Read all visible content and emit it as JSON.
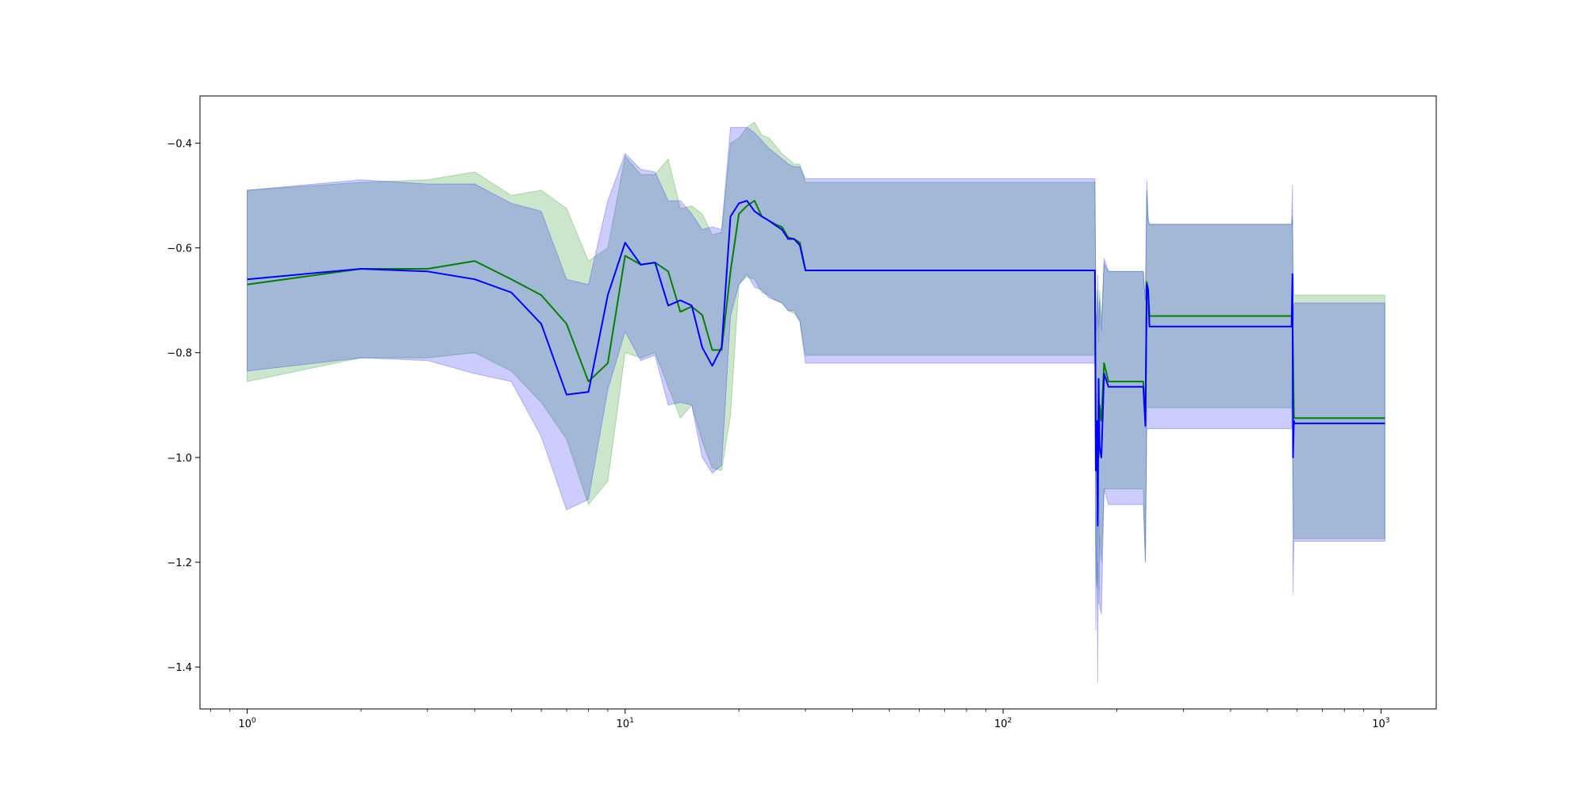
{
  "chart_data": {
    "type": "line",
    "title": "",
    "xlabel": "",
    "ylabel": "",
    "xscale": "log",
    "xlim": [
      0.75,
      1400
    ],
    "ylim": [
      -1.48,
      -0.31
    ],
    "grid": false,
    "x_ticks": [
      {
        "value": 1,
        "base": "10",
        "exp": "0"
      },
      {
        "value": 10,
        "base": "10",
        "exp": "1"
      },
      {
        "value": 100,
        "base": "10",
        "exp": "2"
      },
      {
        "value": 1000,
        "base": "10",
        "exp": "3"
      }
    ],
    "y_ticks": [
      {
        "value": -0.4,
        "label": "−0.4"
      },
      {
        "value": -0.6,
        "label": "−0.6"
      },
      {
        "value": -0.8,
        "label": "−0.8"
      },
      {
        "value": -1.0,
        "label": "−1.0"
      },
      {
        "value": -1.2,
        "label": "−1.2"
      },
      {
        "value": -1.4,
        "label": "−1.4"
      }
    ],
    "series": [
      {
        "color": "#008000",
        "band_color": "#008000",
        "band_opacity": 0.2,
        "x": [
          1,
          2,
          3,
          4,
          5,
          6,
          7,
          8,
          9,
          10,
          11,
          12,
          13,
          14,
          15,
          16,
          17,
          18,
          19,
          20,
          21,
          22,
          23,
          24,
          25,
          26,
          27,
          28,
          29,
          30,
          100,
          175,
          176,
          177,
          178,
          179,
          180,
          182,
          185,
          190,
          200,
          235,
          238,
          240,
          242,
          244,
          250,
          400,
          580,
          583,
          585,
          588,
          590,
          1024
        ],
        "y": [
          -0.67,
          -0.64,
          -0.64,
          -0.625,
          -0.66,
          -0.69,
          -0.745,
          -0.855,
          -0.82,
          -0.615,
          -0.632,
          -0.628,
          -0.645,
          -0.722,
          -0.712,
          -0.728,
          -0.795,
          -0.795,
          -0.645,
          -0.535,
          -0.52,
          -0.51,
          -0.54,
          -0.548,
          -0.555,
          -0.56,
          -0.58,
          -0.583,
          -0.59,
          -0.643,
          -0.643,
          -0.643,
          -0.96,
          -1.0,
          -0.95,
          -1.0,
          -0.9,
          -0.93,
          -0.82,
          -0.855,
          -0.855,
          -0.855,
          -0.93,
          -0.665,
          -0.68,
          -0.73,
          -0.73,
          -0.73,
          -0.73,
          -0.72,
          -0.8,
          -0.92,
          -0.925,
          -0.925
        ],
        "upper": [
          -0.49,
          -0.475,
          -0.47,
          -0.455,
          -0.5,
          -0.49,
          -0.525,
          -0.625,
          -0.6,
          -0.425,
          -0.46,
          -0.46,
          -0.43,
          -0.525,
          -0.52,
          -0.535,
          -0.575,
          -0.57,
          -0.4,
          -0.39,
          -0.37,
          -0.36,
          -0.385,
          -0.39,
          -0.405,
          -0.42,
          -0.43,
          -0.44,
          -0.44,
          -0.475,
          -0.475,
          -0.475,
          -0.72,
          -0.74,
          -0.68,
          -0.78,
          -0.68,
          -0.74,
          -0.63,
          -0.645,
          -0.645,
          -0.645,
          -0.7,
          -0.49,
          -0.54,
          -0.555,
          -0.555,
          -0.555,
          -0.555,
          -0.54,
          -0.6,
          -0.69,
          -0.69,
          -0.69
        ],
        "lower": [
          -0.855,
          -0.81,
          -0.81,
          -0.8,
          -0.835,
          -0.895,
          -0.965,
          -1.09,
          -1.045,
          -0.8,
          -0.81,
          -0.8,
          -0.865,
          -0.925,
          -0.9,
          -0.97,
          -1.02,
          -1.025,
          -0.92,
          -0.67,
          -0.655,
          -0.66,
          -0.685,
          -0.69,
          -0.7,
          -0.705,
          -0.72,
          -0.725,
          -0.74,
          -0.805,
          -0.805,
          -0.805,
          -1.2,
          -1.25,
          -1.2,
          -1.28,
          -1.15,
          -1.2,
          -1.06,
          -1.06,
          -1.06,
          -1.06,
          -1.2,
          -0.905,
          -0.905,
          -0.905,
          -0.905,
          -0.905,
          -0.905,
          -0.91,
          -1.05,
          -1.155,
          -1.155,
          -1.155
        ]
      },
      {
        "color": "#0000ff",
        "band_color": "#0000ff",
        "band_opacity": 0.2,
        "x": [
          1,
          2,
          3,
          4,
          5,
          6,
          7,
          8,
          9,
          10,
          11,
          12,
          13,
          14,
          15,
          16,
          17,
          18,
          19,
          20,
          21,
          22,
          23,
          24,
          25,
          26,
          27,
          28,
          29,
          30,
          100,
          175,
          176,
          177,
          178,
          179,
          180,
          182,
          185,
          190,
          200,
          235,
          238,
          240,
          242,
          244,
          250,
          400,
          580,
          583,
          585,
          588,
          590,
          1024
        ],
        "y": [
          -0.66,
          -0.64,
          -0.645,
          -0.66,
          -0.685,
          -0.745,
          -0.88,
          -0.875,
          -0.69,
          -0.59,
          -0.632,
          -0.628,
          -0.71,
          -0.7,
          -0.71,
          -0.79,
          -0.825,
          -0.79,
          -0.54,
          -0.515,
          -0.51,
          -0.53,
          -0.54,
          -0.548,
          -0.557,
          -0.565,
          -0.583,
          -0.583,
          -0.595,
          -0.643,
          -0.643,
          -0.643,
          -1.025,
          -0.93,
          -1.13,
          -0.85,
          -0.98,
          -1.0,
          -0.84,
          -0.865,
          -0.865,
          -0.865,
          -0.94,
          -0.67,
          -0.68,
          -0.75,
          -0.75,
          -0.75,
          -0.75,
          -0.65,
          -1.0,
          -0.93,
          -0.935,
          -0.935
        ],
        "upper": [
          -0.49,
          -0.47,
          -0.478,
          -0.478,
          -0.515,
          -0.53,
          -0.66,
          -0.67,
          -0.51,
          -0.42,
          -0.45,
          -0.455,
          -0.51,
          -0.51,
          -0.535,
          -0.565,
          -0.56,
          -0.565,
          -0.37,
          -0.37,
          -0.37,
          -0.38,
          -0.395,
          -0.41,
          -0.42,
          -0.43,
          -0.44,
          -0.445,
          -0.445,
          -0.468,
          -0.468,
          -0.468,
          -0.73,
          -0.76,
          -0.65,
          -0.75,
          -0.7,
          -0.76,
          -0.62,
          -0.645,
          -0.645,
          -0.645,
          -0.7,
          -0.47,
          -0.55,
          -0.555,
          -0.555,
          -0.555,
          -0.555,
          -0.48,
          -0.75,
          -0.71,
          -0.705,
          -0.705
        ],
        "lower": [
          -0.835,
          -0.81,
          -0.815,
          -0.84,
          -0.855,
          -0.96,
          -1.1,
          -1.08,
          -0.87,
          -0.76,
          -0.815,
          -0.805,
          -0.9,
          -0.895,
          -0.9,
          -1.0,
          -1.03,
          -1.015,
          -0.73,
          -0.67,
          -0.65,
          -0.675,
          -0.68,
          -0.695,
          -0.7,
          -0.705,
          -0.72,
          -0.72,
          -0.74,
          -0.82,
          -0.82,
          -0.82,
          -1.33,
          -1.1,
          -1.43,
          -1.0,
          -1.28,
          -1.3,
          -1.06,
          -1.09,
          -1.09,
          -1.09,
          -1.2,
          -0.945,
          -0.945,
          -0.945,
          -0.945,
          -0.945,
          -0.945,
          -0.8,
          -1.26,
          -1.16,
          -1.16,
          -1.16
        ]
      }
    ]
  }
}
